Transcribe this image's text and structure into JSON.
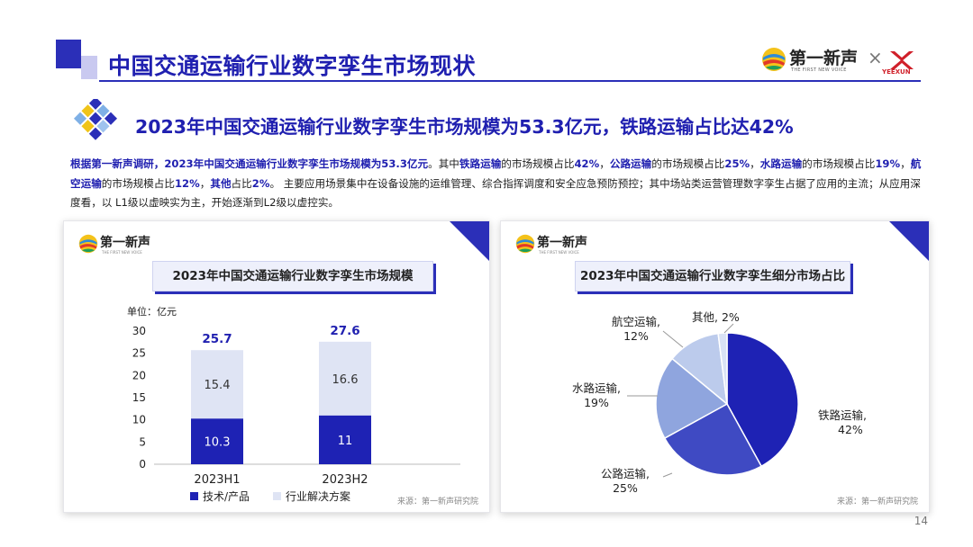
{
  "header": {
    "title": "中国交通运输行业数字孪生市场现状",
    "brand_name": "第一新声",
    "brand_sub": "THE FIRST NEW VOICE",
    "brand_x": "×",
    "partner_name": "YEEXUN"
  },
  "subtitle": "2023年中国交通运输行业数字孪生市场规模为53.3亿元，铁路运输占比达42%",
  "paragraph": [
    {
      "t": "根据第一新声调研，2023年中国交通运输行业数字孪生市场规模为53.3亿元",
      "hl": true
    },
    {
      "t": "。其中",
      "hl": false
    },
    {
      "t": "铁路运输",
      "hl": true
    },
    {
      "t": "的市场规模占比",
      "hl": false
    },
    {
      "t": "42%",
      "hl": true
    },
    {
      "t": "，",
      "hl": false
    },
    {
      "t": "公路运输",
      "hl": true
    },
    {
      "t": "的市场规模占比",
      "hl": false
    },
    {
      "t": "25%",
      "hl": true
    },
    {
      "t": "，",
      "hl": false
    },
    {
      "t": "水路运输",
      "hl": true
    },
    {
      "t": "的市场规模占比",
      "hl": false
    },
    {
      "t": "19%",
      "hl": true
    },
    {
      "t": "，",
      "hl": false
    },
    {
      "t": "航空运输",
      "hl": true
    },
    {
      "t": "的市场规模占比",
      "hl": false
    },
    {
      "t": "12%",
      "hl": true
    },
    {
      "t": "，",
      "hl": false
    },
    {
      "t": "其他",
      "hl": true
    },
    {
      "t": "占比",
      "hl": false
    },
    {
      "t": "2%",
      "hl": true
    },
    {
      "t": "。 主要应用场景集中在设备设施的运维管理、综合指挥调度和安全应急预防预控；其中场站类运营管理数字孪生占据了应用的主流；从应用深度看，以 L1级以虚映实为主，开始逐渐到L2级以虚控实。",
      "hl": false
    }
  ],
  "left_panel": {
    "logo_name": "第一新声",
    "logo_sub": "THE FIRST NEW VOICE",
    "source": "来源：第一新声研究院"
  },
  "right_panel": {
    "logo_name": "第一新声",
    "logo_sub": "THE FIRST NEW VOICE",
    "source": "来源：第一新声研究院"
  },
  "colors": {
    "accent": "#2b2fb8",
    "bar_dark": "#1e22b4",
    "bar_light": "#dfe4f4",
    "pie": [
      "#1e22b4",
      "#3f4ac3",
      "#8fa5de",
      "#bccbec",
      "#d9e2f5"
    ]
  },
  "page_number": "14",
  "chart_data": [
    {
      "type": "bar",
      "title": "2023年中国交通运输行业数字孪生市场规模",
      "unit_label": "单位：亿元",
      "categories": [
        "2023H1",
        "2023H2"
      ],
      "series": [
        {
          "name": "技术/产品",
          "values": [
            10.3,
            11
          ]
        },
        {
          "name": "行业解决方案",
          "values": [
            15.4,
            16.6
          ]
        }
      ],
      "totals": [
        25.7,
        27.6
      ],
      "yticks": [
        0,
        5,
        10,
        15,
        20,
        25,
        30
      ],
      "ylim": [
        0,
        30
      ],
      "legend_position": "bottom"
    },
    {
      "type": "pie",
      "title": "2023年中国交通运输行业数字孪生细分市场占比",
      "slices": [
        {
          "label": "铁路运输,\n42%",
          "value": 42
        },
        {
          "label": "公路运输,\n25%",
          "value": 25
        },
        {
          "label": "水路运输,\n19%",
          "value": 19
        },
        {
          "label": "航空运输,\n12%",
          "value": 12
        },
        {
          "label": "其他, 2%",
          "value": 2
        }
      ]
    }
  ]
}
